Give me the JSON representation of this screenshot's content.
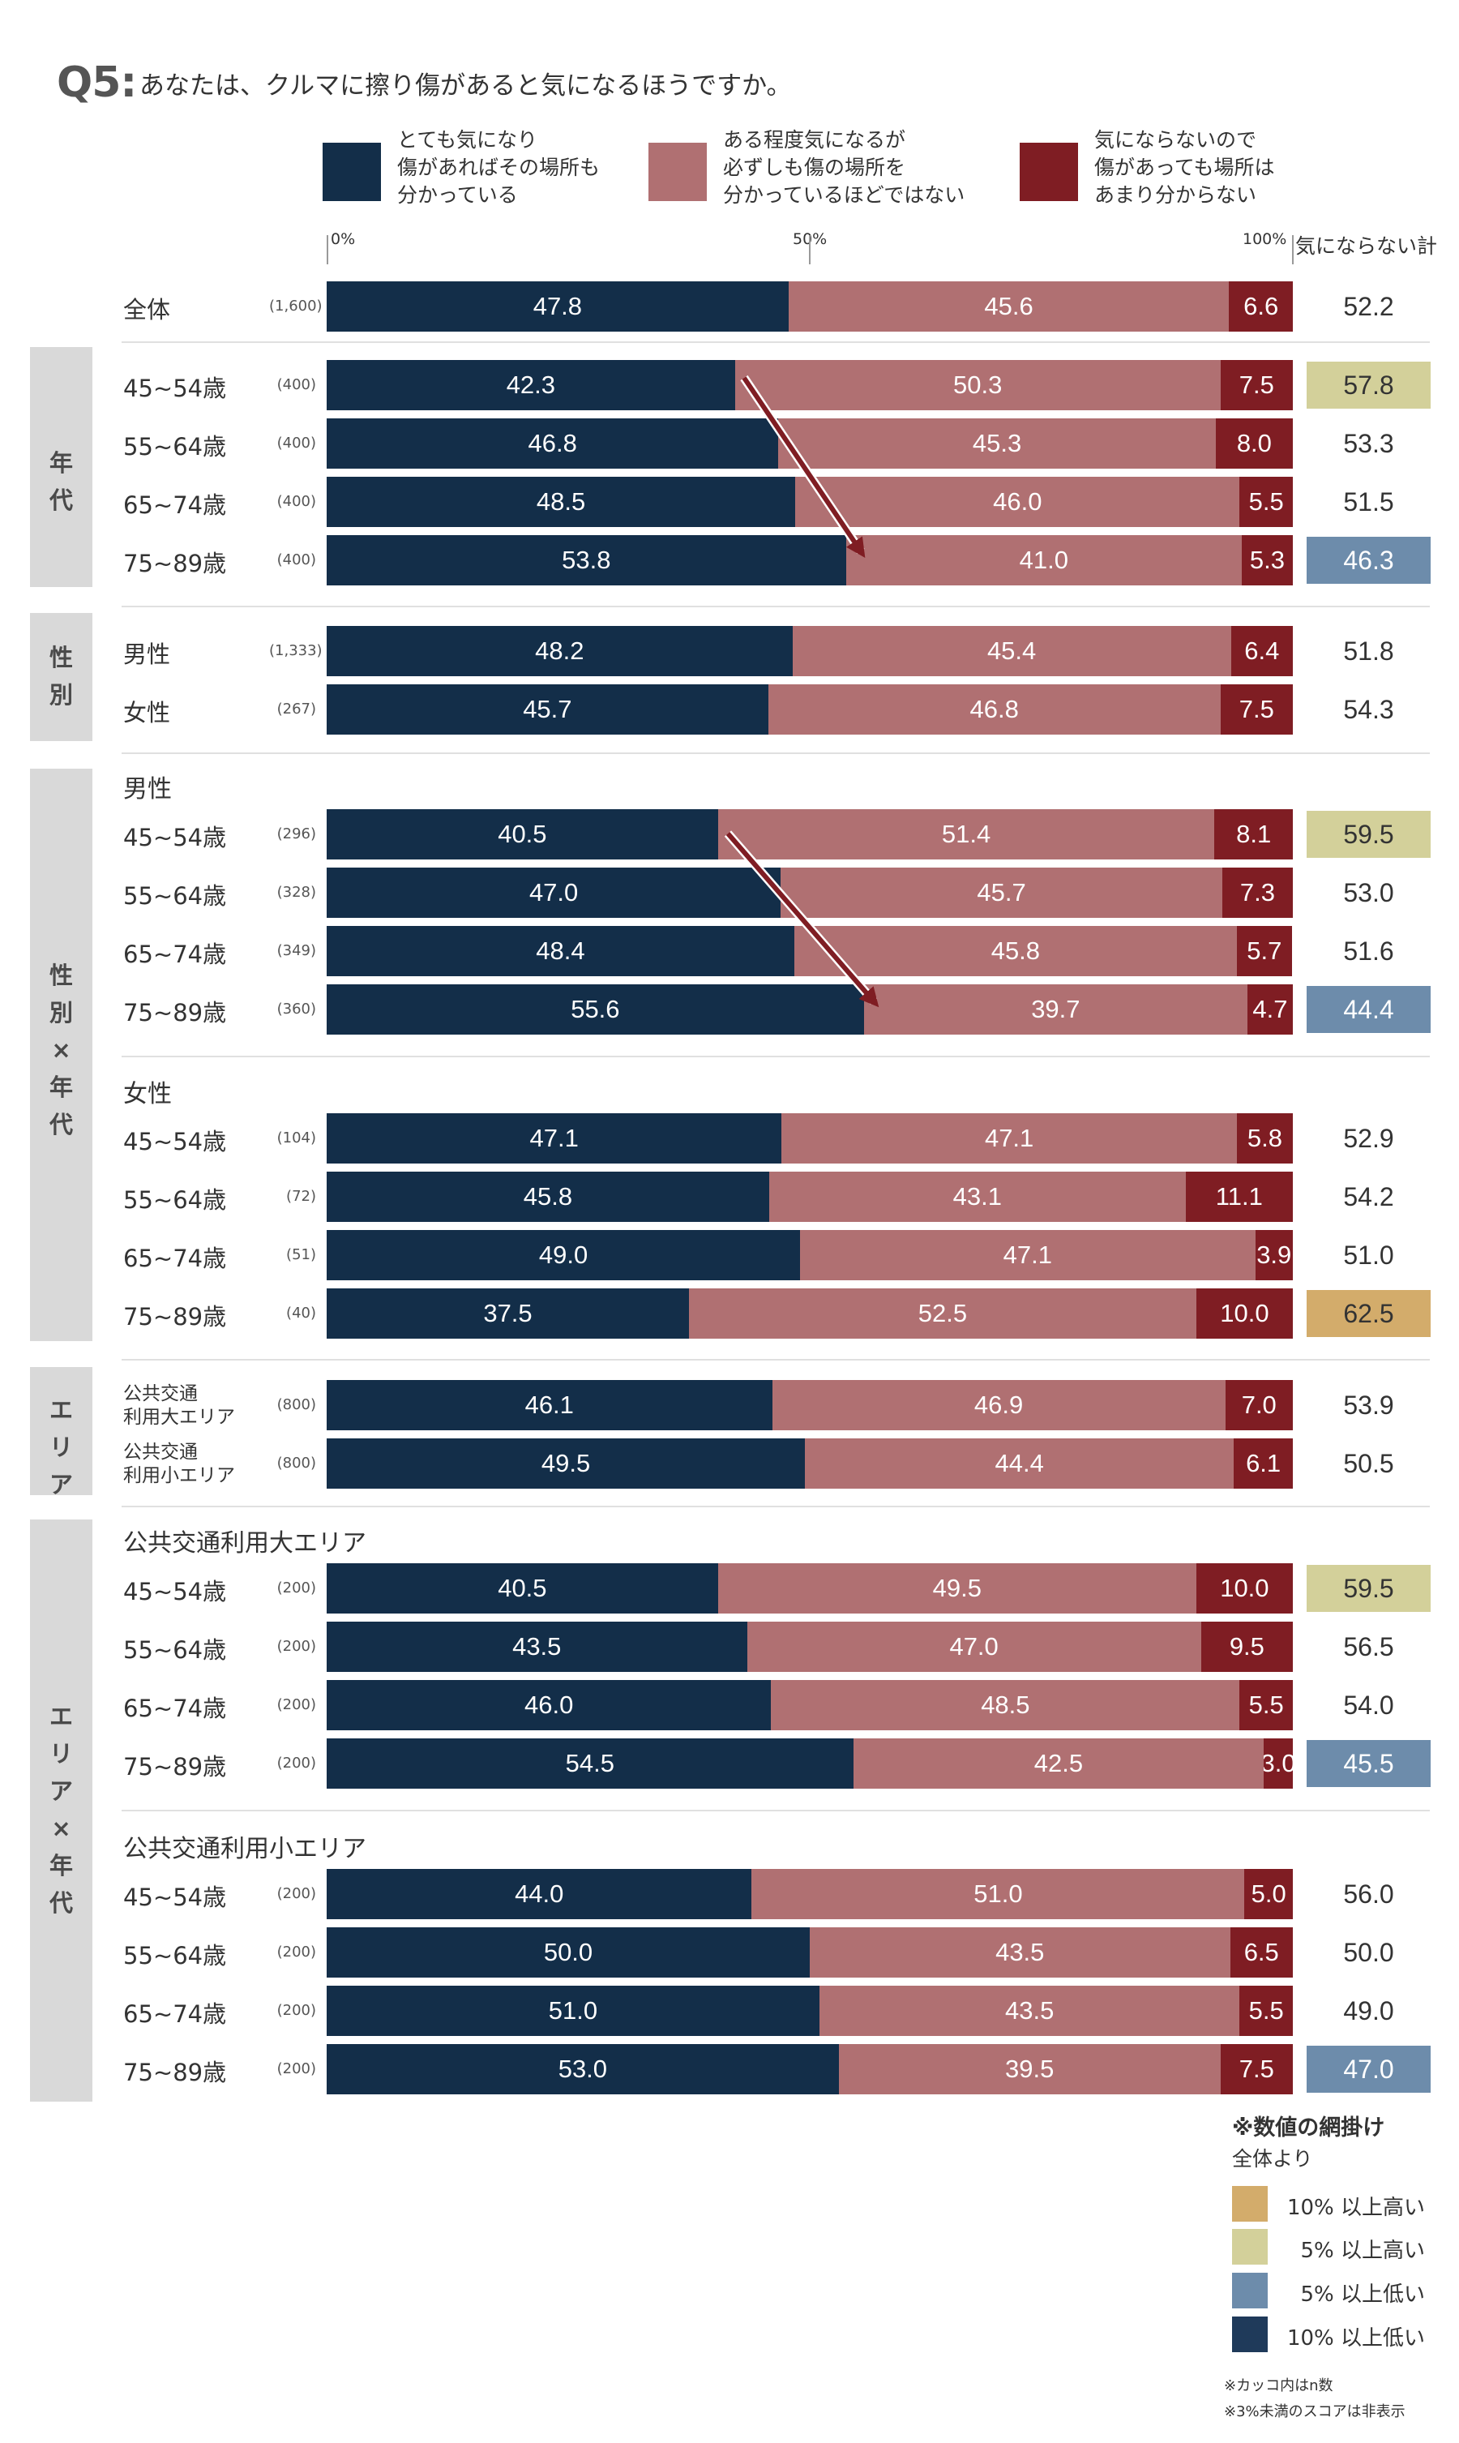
{
  "question": {
    "label": "Q5:",
    "text": "あなたは、クルマに擦り傷があると気になるほうですか。"
  },
  "legend": [
    {
      "lines": [
        "とても気になり",
        "傷があればその場所も",
        "分かっている"
      ],
      "color": "#132e49"
    },
    {
      "lines": [
        "ある程度気になるが",
        "必ずしも傷の場所を",
        "分かっているほどではない"
      ],
      "color": "#b07072"
    },
    {
      "lines": [
        "気にならないので",
        "傷があっても場所は",
        "あまり分からない"
      ],
      "color": "#7f1d23"
    }
  ],
  "axis_ticks": [
    "0%",
    "50%",
    "100%"
  ],
  "total_column_header": "気にならない計",
  "chart_data": {
    "type": "bar",
    "orientation": "horizontal",
    "stacked": true,
    "unit": "%",
    "xlim": [
      0,
      100
    ],
    "series_names": [
      "とても気になり傷があればその場所も分かっている",
      "ある程度気になるが必ずしも傷の場所を分かっているほどではない",
      "気にならないので傷があっても場所はあまり分からない"
    ],
    "series_colors": [
      "#132e49",
      "#b07072",
      "#7f1d23"
    ],
    "total_label": "気にならない計",
    "groups": [
      {
        "label": "",
        "rows": [
          {
            "label": "全体",
            "n": "(1,600)",
            "values": [
              47.8,
              45.6,
              6.6
            ],
            "total": "52.2",
            "hl": ""
          }
        ]
      },
      {
        "label": "年代",
        "rows": [
          {
            "label": "45~54歳",
            "n": "(400)",
            "values": [
              42.3,
              50.3,
              7.5
            ],
            "total": "57.8",
            "hl": "high5"
          },
          {
            "label": "55~64歳",
            "n": "(400)",
            "values": [
              46.8,
              45.3,
              8.0
            ],
            "total": "53.3",
            "hl": ""
          },
          {
            "label": "65~74歳",
            "n": "(400)",
            "values": [
              48.5,
              46.0,
              5.5
            ],
            "total": "51.5",
            "hl": ""
          },
          {
            "label": "75~89歳",
            "n": "(400)",
            "values": [
              53.8,
              41.0,
              5.3
            ],
            "total": "46.3",
            "hl": "low5"
          }
        ]
      },
      {
        "label": "性別",
        "rows": [
          {
            "label": "男性",
            "n": "(1,333)",
            "values": [
              48.2,
              45.4,
              6.4
            ],
            "total": "51.8",
            "hl": ""
          },
          {
            "label": "女性",
            "n": "(267)",
            "values": [
              45.7,
              46.8,
              7.5
            ],
            "total": "54.3",
            "hl": ""
          }
        ]
      },
      {
        "label": "性別×年代",
        "subgroups": [
          {
            "label": "男性",
            "rows": [
              {
                "label": "45~54歳",
                "n": "(296)",
                "values": [
                  40.5,
                  51.4,
                  8.1
                ],
                "total": "59.5",
                "hl": "high5"
              },
              {
                "label": "55~64歳",
                "n": "(328)",
                "values": [
                  47.0,
                  45.7,
                  7.3
                ],
                "total": "53.0",
                "hl": ""
              },
              {
                "label": "65~74歳",
                "n": "(349)",
                "values": [
                  48.4,
                  45.8,
                  5.7
                ],
                "total": "51.6",
                "hl": ""
              },
              {
                "label": "75~89歳",
                "n": "(360)",
                "values": [
                  55.6,
                  39.7,
                  4.7
                ],
                "total": "44.4",
                "hl": "low5"
              }
            ]
          },
          {
            "label": "女性",
            "rows": [
              {
                "label": "45~54歳",
                "n": "(104)",
                "values": [
                  47.1,
                  47.1,
                  5.8
                ],
                "total": "52.9",
                "hl": ""
              },
              {
                "label": "55~64歳",
                "n": "(72)",
                "values": [
                  45.8,
                  43.1,
                  11.1
                ],
                "total": "54.2",
                "hl": ""
              },
              {
                "label": "65~74歳",
                "n": "(51)",
                "values": [
                  49.0,
                  47.1,
                  3.9
                ],
                "total": "51.0",
                "hl": ""
              },
              {
                "label": "75~89歳",
                "n": "(40)",
                "values": [
                  37.5,
                  52.5,
                  10.0
                ],
                "total": "62.5",
                "hl": "high10"
              }
            ]
          }
        ]
      },
      {
        "label": "エリア",
        "rows": [
          {
            "label": "公共交通利用大エリア",
            "n": "(800)",
            "values": [
              46.1,
              46.9,
              7.0
            ],
            "total": "53.9",
            "hl": ""
          },
          {
            "label": "公共交通利用小エリア",
            "n": "(800)",
            "values": [
              49.5,
              44.4,
              6.1
            ],
            "total": "50.5",
            "hl": ""
          }
        ]
      },
      {
        "label": "エリア×年代",
        "subgroups": [
          {
            "label": "公共交通利用大エリア",
            "rows": [
              {
                "label": "45~54歳",
                "n": "(200)",
                "values": [
                  40.5,
                  49.5,
                  10.0
                ],
                "total": "59.5",
                "hl": "high5"
              },
              {
                "label": "55~64歳",
                "n": "(200)",
                "values": [
                  43.5,
                  47.0,
                  9.5
                ],
                "total": "56.5",
                "hl": ""
              },
              {
                "label": "65~74歳",
                "n": "(200)",
                "values": [
                  46.0,
                  48.5,
                  5.5
                ],
                "total": "54.0",
                "hl": ""
              },
              {
                "label": "75~89歳",
                "n": "(200)",
                "values": [
                  54.5,
                  42.5,
                  3.0
                ],
                "total": "45.5",
                "hl": "low5"
              }
            ]
          },
          {
            "label": "公共交通利用小エリア",
            "rows": [
              {
                "label": "45~54歳",
                "n": "(200)",
                "values": [
                  44.0,
                  51.0,
                  5.0
                ],
                "total": "56.0",
                "hl": ""
              },
              {
                "label": "55~64歳",
                "n": "(200)",
                "values": [
                  50.0,
                  43.5,
                  6.5
                ],
                "total": "50.0",
                "hl": ""
              },
              {
                "label": "65~74歳",
                "n": "(200)",
                "values": [
                  51.0,
                  43.5,
                  5.5
                ],
                "total": "49.0",
                "hl": ""
              },
              {
                "label": "75~89歳",
                "n": "(200)",
                "values": [
                  53.0,
                  39.5,
                  7.5
                ],
                "total": "47.0",
                "hl": "low5"
              }
            ]
          }
        ]
      }
    ],
    "annotations": [
      "trend arrow over 年代 rows 45~54歳 to 75~89歳",
      "trend arrow over 男性 rows 45~54歳 to 75~89歳"
    ]
  },
  "highlight_legend": {
    "title": "※数値の網掛け",
    "subtitle": "全体より",
    "items": [
      {
        "key": "high10",
        "label": "10% 以上高い",
        "color": "#d3ac6b"
      },
      {
        "key": "high5",
        "label": "5% 以上高い",
        "color": "#d3d09a"
      },
      {
        "key": "low5",
        "label": "5% 以上低い",
        "color": "#6d8cab"
      },
      {
        "key": "low10",
        "label": "10% 以上低い",
        "color": "#1f3a5a"
      }
    ]
  },
  "footnotes": [
    "※カッコ内はn数",
    "※3%未満のスコアは非表示"
  ]
}
